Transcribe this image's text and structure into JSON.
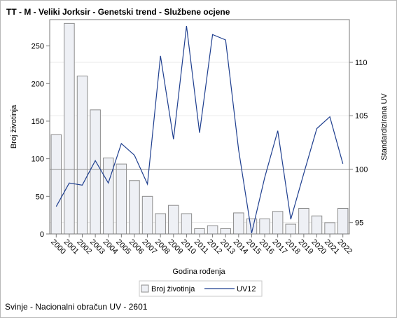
{
  "title": "TT - M - Veliki Jorksir - Genetski trend - Službene ocjene",
  "footnote": "Svinje - Nacionalni obračun UV - 2601",
  "chart_data": {
    "type": "bar",
    "xlabel": "Godina rođenja",
    "ylabel": "Broj životinja",
    "y2label": "Standardizirana UV",
    "categories": [
      "2000",
      "2001",
      "2002",
      "2003",
      "2004",
      "2005",
      "2006",
      "2007",
      "2008",
      "2009",
      "2010",
      "2011",
      "2012",
      "2013",
      "2014",
      "2015",
      "2016",
      "2017",
      "2018",
      "2019",
      "2020",
      "2021",
      "2022"
    ],
    "series": [
      {
        "name": "Broj životinja",
        "type": "bar",
        "axis": "left",
        "values": [
          132,
          280,
          210,
          165,
          101,
          93,
          71,
          50,
          27,
          38,
          27,
          7,
          11,
          7,
          28,
          20,
          20,
          30,
          13,
          34,
          24,
          15,
          34
        ]
      },
      {
        "name": "UV12",
        "type": "line",
        "axis": "right",
        "values": [
          96.5,
          98.7,
          98.5,
          100.8,
          98.7,
          102.4,
          101.3,
          98.6,
          110.6,
          102.8,
          113.4,
          103.4,
          112.6,
          112.1,
          101.8,
          94.0,
          99.2,
          103.6,
          95.3,
          99.6,
          103.8,
          104.9,
          100.5
        ]
      }
    ],
    "ylim": [
      0,
      285
    ],
    "yticks": [
      0,
      50,
      100,
      150,
      200,
      250
    ],
    "y2lim": [
      93.93,
      114.0
    ],
    "y2ticks": [
      95,
      100,
      105,
      110
    ],
    "reference_lines": [
      {
        "axis": "right",
        "value": 100
      }
    ],
    "legend": {
      "placement": "bottom",
      "entries": [
        "Broj životinja",
        "UV12"
      ]
    },
    "colors": {
      "bar_fill": "#eef0f5",
      "bar_stroke": "#8c8c8c",
      "line": "#1f3f8f",
      "reference": "#909090",
      "grid": "#e9e9e9"
    }
  }
}
